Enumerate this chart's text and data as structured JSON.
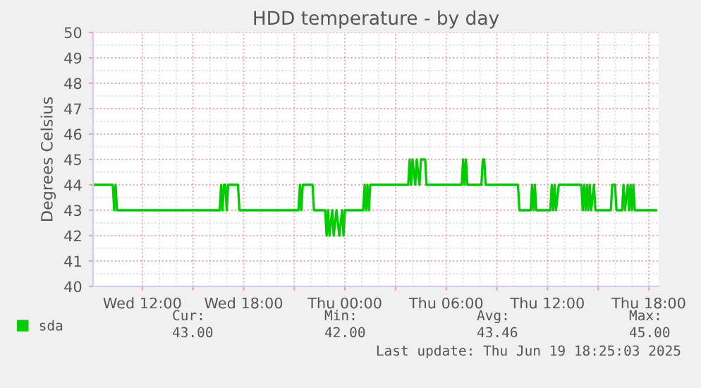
{
  "chart_data": {
    "type": "line",
    "title": "HDD temperature - by day",
    "ylabel": "Degrees Celsius",
    "x": [
      "2025-06-18T09:05",
      "2025-06-18T10:15",
      "2025-06-18T10:20",
      "2025-06-18T10:25",
      "2025-06-18T10:30",
      "2025-06-18T16:35",
      "2025-06-18T16:40",
      "2025-06-18T16:45",
      "2025-06-18T16:50",
      "2025-06-18T16:55",
      "2025-06-18T17:00",
      "2025-06-18T17:05",
      "2025-06-18T17:40",
      "2025-06-18T17:45",
      "2025-06-18T21:15",
      "2025-06-18T21:20",
      "2025-06-18T21:25",
      "2025-06-18T21:30",
      "2025-06-18T22:05",
      "2025-06-18T22:10",
      "2025-06-18T22:50",
      "2025-06-18T22:55",
      "2025-06-18T23:00",
      "2025-06-18T23:05",
      "2025-06-18T23:15",
      "2025-06-18T23:20",
      "2025-06-18T23:30",
      "2025-06-18T23:40",
      "2025-06-18T23:50",
      "2025-06-18T23:55",
      "2025-06-19T00:00",
      "2025-06-19T01:05",
      "2025-06-19T01:10",
      "2025-06-19T01:15",
      "2025-06-19T01:20",
      "2025-06-19T01:25",
      "2025-06-19T01:30",
      "2025-06-19T03:45",
      "2025-06-19T03:50",
      "2025-06-19T03:55",
      "2025-06-19T04:00",
      "2025-06-19T04:10",
      "2025-06-19T04:15",
      "2025-06-19T04:25",
      "2025-06-19T04:30",
      "2025-06-19T04:45",
      "2025-06-19T04:50",
      "2025-06-19T06:55",
      "2025-06-19T07:00",
      "2025-06-19T07:05",
      "2025-06-19T07:10",
      "2025-06-19T07:15",
      "2025-06-19T08:05",
      "2025-06-19T08:10",
      "2025-06-19T08:15",
      "2025-06-19T08:20",
      "2025-06-19T10:15",
      "2025-06-19T10:20",
      "2025-06-19T11:00",
      "2025-06-19T11:05",
      "2025-06-19T11:10",
      "2025-06-19T11:15",
      "2025-06-19T11:20",
      "2025-06-19T12:10",
      "2025-06-19T12:15",
      "2025-06-19T12:20",
      "2025-06-19T12:25",
      "2025-06-19T12:30",
      "2025-06-19T12:40",
      "2025-06-19T14:00",
      "2025-06-19T14:05",
      "2025-06-19T14:10",
      "2025-06-19T14:15",
      "2025-06-19T14:20",
      "2025-06-19T14:25",
      "2025-06-19T14:30",
      "2025-06-19T14:35",
      "2025-06-19T14:45",
      "2025-06-19T14:50",
      "2025-06-19T15:45",
      "2025-06-19T15:50",
      "2025-06-19T16:00",
      "2025-06-19T16:05",
      "2025-06-19T16:25",
      "2025-06-19T16:30",
      "2025-06-19T16:35",
      "2025-06-19T16:45",
      "2025-06-19T16:50",
      "2025-06-19T16:55",
      "2025-06-19T17:00",
      "2025-06-19T17:05",
      "2025-06-19T17:10",
      "2025-06-19T18:25"
    ],
    "series": [
      {
        "name": "sda",
        "color": "#00cc00",
        "values": [
          44,
          44,
          43,
          44,
          43,
          43,
          44,
          43,
          44,
          44,
          43,
          44,
          44,
          43,
          43,
          44,
          43,
          44,
          44,
          43,
          43,
          42,
          43,
          42,
          43,
          42,
          43,
          42,
          43,
          42,
          43,
          43,
          44,
          43,
          44,
          43,
          44,
          44,
          45,
          44,
          45,
          44,
          45,
          44,
          45,
          45,
          44,
          44,
          45,
          44,
          45,
          44,
          44,
          45,
          45,
          44,
          44,
          43,
          43,
          44,
          43,
          44,
          43,
          43,
          44,
          43,
          44,
          43,
          44,
          44,
          43,
          44,
          43,
          44,
          43,
          44,
          43,
          44,
          43,
          43,
          44,
          44,
          43,
          43,
          44,
          43,
          44,
          43,
          44,
          43,
          44,
          43,
          43
        ]
      }
    ],
    "xlim": [
      "2025-06-18T09:05",
      "2025-06-19T18:35"
    ],
    "xticks": [
      {
        "value": "2025-06-18T12:00",
        "label": "Wed 12:00"
      },
      {
        "value": "2025-06-18T15:00",
        "label": null
      },
      {
        "value": "2025-06-18T18:00",
        "label": "Wed 18:00"
      },
      {
        "value": "2025-06-18T21:00",
        "label": null
      },
      {
        "value": "2025-06-19T00:00",
        "label": "Thu 00:00"
      },
      {
        "value": "2025-06-19T03:00",
        "label": null
      },
      {
        "value": "2025-06-19T06:00",
        "label": "Thu 06:00"
      },
      {
        "value": "2025-06-19T09:00",
        "label": null
      },
      {
        "value": "2025-06-19T12:00",
        "label": "Thu 12:00"
      },
      {
        "value": "2025-06-19T15:00",
        "label": null
      },
      {
        "value": "2025-06-19T18:00",
        "label": "Thu 18:00"
      }
    ],
    "ylim": [
      40,
      50
    ],
    "yticks": [
      40,
      41,
      42,
      43,
      44,
      45,
      46,
      47,
      48,
      49,
      50
    ],
    "grid": true,
    "legend": "bottom left",
    "marker": "none",
    "line_style": "solid",
    "annotations": [
      "Cur:",
      "43.00",
      "Min:",
      "42.00",
      "Avg:",
      "43.46",
      "Max:",
      "45.00",
      "Last update: Thu Jun 19 18:25:03 2025"
    ]
  }
}
